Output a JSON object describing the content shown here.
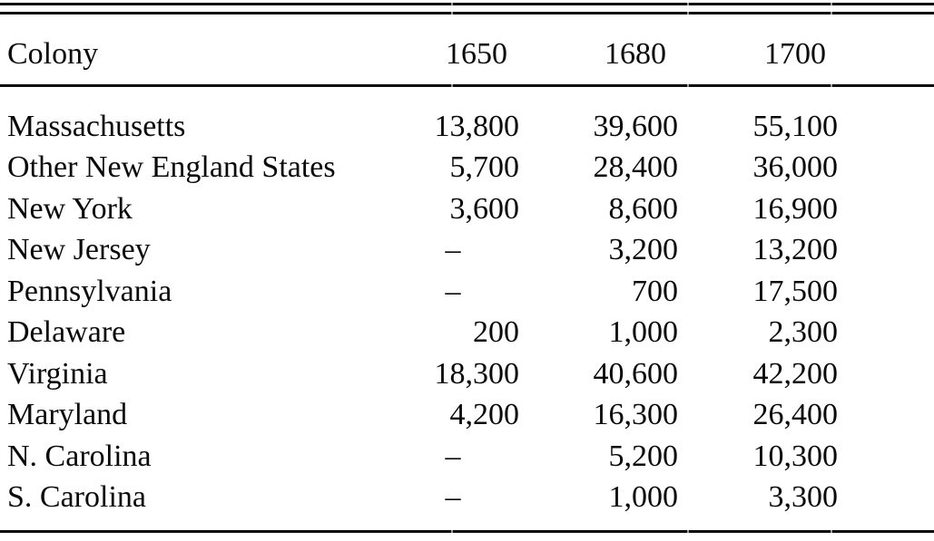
{
  "table": {
    "columns": [
      "Colony",
      "1650",
      "1680",
      "1700"
    ],
    "missing_marker": "–",
    "rows": [
      {
        "colony": "Massachusetts",
        "y1650": "13,800",
        "y1680": "39,600",
        "y1700": "55,100"
      },
      {
        "colony": "Other New England States",
        "y1650": "5,700",
        "y1680": "28,400",
        "y1700": "36,000"
      },
      {
        "colony": "New York",
        "y1650": "3,600",
        "y1680": "8,600",
        "y1700": "16,900"
      },
      {
        "colony": "New Jersey",
        "y1650": "–",
        "y1680": "3,200",
        "y1700": "13,200"
      },
      {
        "colony": "Pennsylvania",
        "y1650": "–",
        "y1680": "700",
        "y1700": "17,500"
      },
      {
        "colony": "Delaware",
        "y1650": "200",
        "y1680": "1,000",
        "y1700": "2,300"
      },
      {
        "colony": "Virginia",
        "y1650": "18,300",
        "y1680": "40,600",
        "y1700": "42,200"
      },
      {
        "colony": "Maryland",
        "y1650": "4,200",
        "y1680": "16,300",
        "y1700": "26,400"
      },
      {
        "colony": "N. Carolina",
        "y1650": "–",
        "y1680": "5,200",
        "y1700": "10,300"
      },
      {
        "colony": "S. Carolina",
        "y1650": "–",
        "y1680": "1,000",
        "y1700": "3,300"
      }
    ]
  },
  "chart_data": {
    "type": "table",
    "title": "",
    "columns": [
      "Colony",
      "1650",
      "1680",
      "1700"
    ],
    "rows": [
      [
        "Massachusetts",
        13800,
        39600,
        55100
      ],
      [
        "Other New England States",
        5700,
        28400,
        36000
      ],
      [
        "New York",
        3600,
        8600,
        16900
      ],
      [
        "New Jersey",
        null,
        3200,
        13200
      ],
      [
        "Pennsylvania",
        null,
        700,
        17500
      ],
      [
        "Delaware",
        200,
        1000,
        2300
      ],
      [
        "Virginia",
        18300,
        40600,
        42200
      ],
      [
        "Maryland",
        4200,
        16300,
        26400
      ],
      [
        "N. Carolina",
        null,
        5200,
        10300
      ],
      [
        "S. Carolina",
        null,
        1000,
        3300
      ]
    ],
    "missing_marker": "–",
    "layout": {
      "top_rule": "double",
      "header_rule": "single",
      "bottom_rule": "single",
      "numbers_alignment": "right",
      "grid": "horizontal-rules-only"
    }
  },
  "colors": {
    "background": "#ffffff",
    "text": "#0a0a0a",
    "rule": "#0c0c0c",
    "divider_tick": "#9a9a9a"
  }
}
